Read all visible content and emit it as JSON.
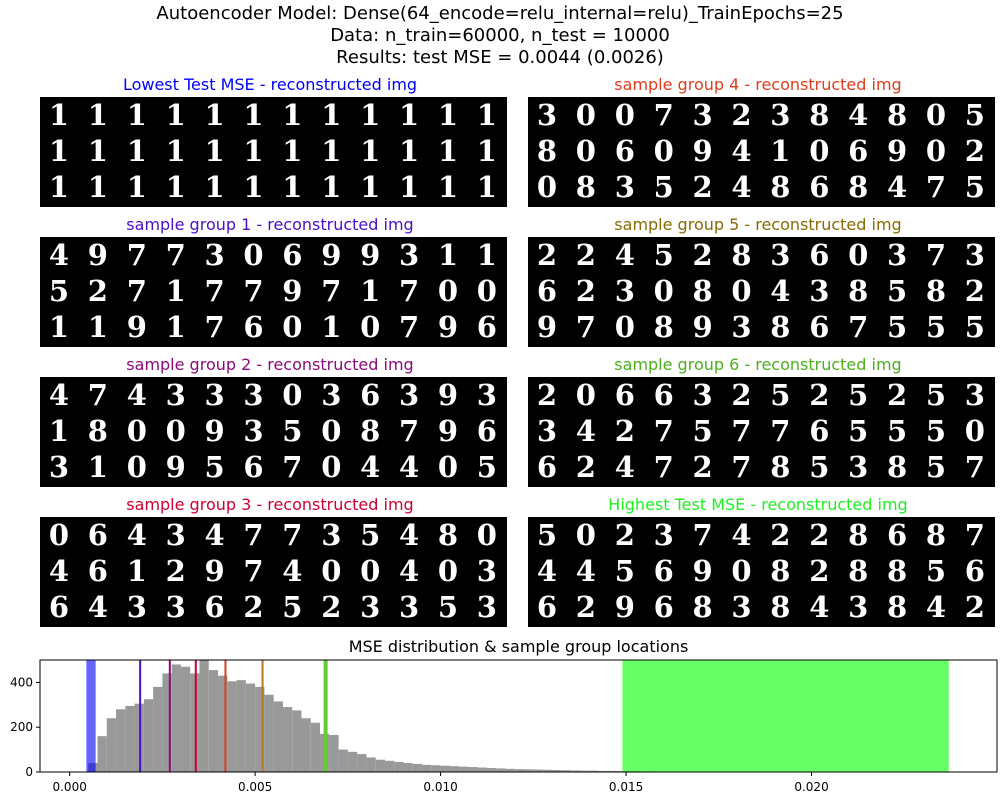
{
  "figure": {
    "title_lines": [
      "Autoencoder Model: Dense(64_encode=relu_internal=relu)_TrainEpochs=25",
      "Data: n_train=60000, n_test = 10000",
      "Results: test MSE = 0.0044 (0.0026)"
    ]
  },
  "panels": [
    {
      "title": "Lowest Test MSE - reconstructed img",
      "color": "#0000ff",
      "rows": [
        "111111111111",
        "111111111111",
        "111111111111"
      ]
    },
    {
      "title": "sample group 4 - reconstructed img",
      "color": "#e03c1c",
      "rows": [
        "300732384805",
        "806094106902",
        "083524868475"
      ]
    },
    {
      "title": "sample group 1 - reconstructed img",
      "color": "#4b0fc4",
      "rows": [
        "497730699311",
        "527177971700",
        "119176010796"
      ]
    },
    {
      "title": "sample group 5 - reconstructed img",
      "color": "#8a6a00",
      "rows": [
        "224528360373",
        "623080438582",
        "970893867555"
      ]
    },
    {
      "title": "sample group 2 - reconstructed img",
      "color": "#8b0a7a",
      "rows": [
        "474333036393",
        "180093508796",
        "310956704405"
      ]
    },
    {
      "title": "sample group 6 - reconstructed img",
      "color": "#4caf1a",
      "rows": [
        "206632525253",
        "342757765550",
        "624727853857"
      ]
    },
    {
      "title": "sample group 3 - reconstructed img",
      "color": "#cc0033",
      "rows": [
        "064347735480",
        "461297400403",
        "643362523353"
      ]
    },
    {
      "title": "Highest Test MSE - reconstructed img",
      "color": "#22ee22",
      "rows": [
        "502374228687",
        "445690828856",
        "629683843842"
      ]
    }
  ],
  "chart_data": {
    "type": "bar",
    "title": "MSE distribution & sample group locations",
    "xlim": [
      -0.0008,
      0.025
    ],
    "ylim": [
      0,
      500
    ],
    "xticks": [
      0.0,
      0.005,
      0.01,
      0.015,
      0.02
    ],
    "xtick_labels": [
      "0.000",
      "0.005",
      "0.010",
      "0.015",
      "0.020"
    ],
    "yticks": [
      0,
      200,
      400
    ],
    "ytick_labels": [
      "0",
      "200",
      "400"
    ],
    "bin_width": 0.00025,
    "bins_start": 0.0005,
    "counts": [
      40,
      160,
      240,
      280,
      295,
      305,
      325,
      380,
      440,
      480,
      470,
      440,
      500,
      455,
      430,
      405,
      410,
      395,
      380,
      345,
      315,
      290,
      275,
      240,
      220,
      170,
      165,
      100,
      90,
      80,
      65,
      55,
      50,
      45,
      40,
      36,
      32,
      30,
      28,
      26,
      24,
      22,
      20,
      18,
      16,
      14,
      13,
      12,
      11,
      10,
      9,
      8,
      7,
      6,
      6,
      5,
      5,
      4,
      4,
      3,
      3,
      2,
      2,
      2,
      2,
      1,
      1,
      1,
      1,
      1
    ],
    "bar_color": "#999999",
    "regions": [
      {
        "name": "Lowest Test MSE",
        "x0": 0.00045,
        "x1": 0.0007,
        "color": "#0000ff",
        "opacity": 0.6
      },
      {
        "name": "Highest Test MSE",
        "x0": 0.0149,
        "x1": 0.0237,
        "color": "#00ff00",
        "opacity": 0.6
      }
    ],
    "lines": [
      {
        "name": "sample group 1",
        "x": 0.0019,
        "color": "#4b0fc4"
      },
      {
        "name": "sample group 2",
        "x": 0.0027,
        "color": "#8b0a7a"
      },
      {
        "name": "sample group 3",
        "x": 0.0034,
        "color": "#cc0033"
      },
      {
        "name": "sample group 4",
        "x": 0.0042,
        "color": "#e03c1c"
      },
      {
        "name": "sample group 5",
        "x": 0.0052,
        "color": "#b07a2a"
      },
      {
        "name": "sample group 6",
        "x": 0.0069,
        "color": "#66cc33",
        "width": 4
      }
    ]
  }
}
